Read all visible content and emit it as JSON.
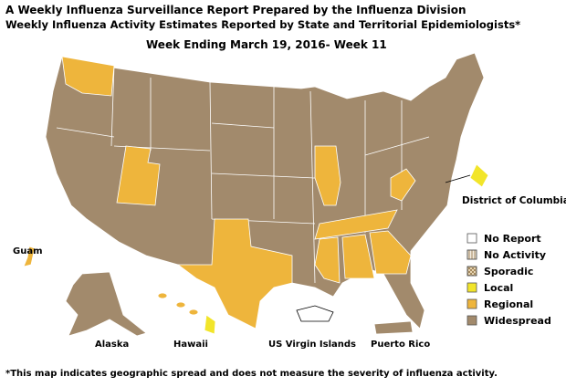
{
  "header": {
    "title": "A Weekly Influenza Surveillance Report Prepared by the Influenza Division",
    "subtitle": "Weekly Influenza Activity Estimates Reported by State and Territorial Epidemiologists*",
    "week": "Week Ending March 19, 2016- Week 11"
  },
  "legend": [
    {
      "label": "No Report",
      "color": "#ffffff"
    },
    {
      "label": "No Activity",
      "color": "#f3ece0"
    },
    {
      "label": "Sporadic",
      "color": "#f3e3c3"
    },
    {
      "label": "Local",
      "color": "#f2e52a"
    },
    {
      "label": "Regional",
      "color": "#eeb53c"
    },
    {
      "label": "Widespread",
      "color": "#a28a6c"
    }
  ],
  "labels": {
    "dc": "District of Columbia",
    "guam": "Guam",
    "alaska": "Alaska",
    "hawaii": "Hawaii",
    "usvi": "US Virgin Islands",
    "pr": "Puerto Rico"
  },
  "footnote": "*This map indicates geographic spread and does not measure the severity of influenza activity."
}
